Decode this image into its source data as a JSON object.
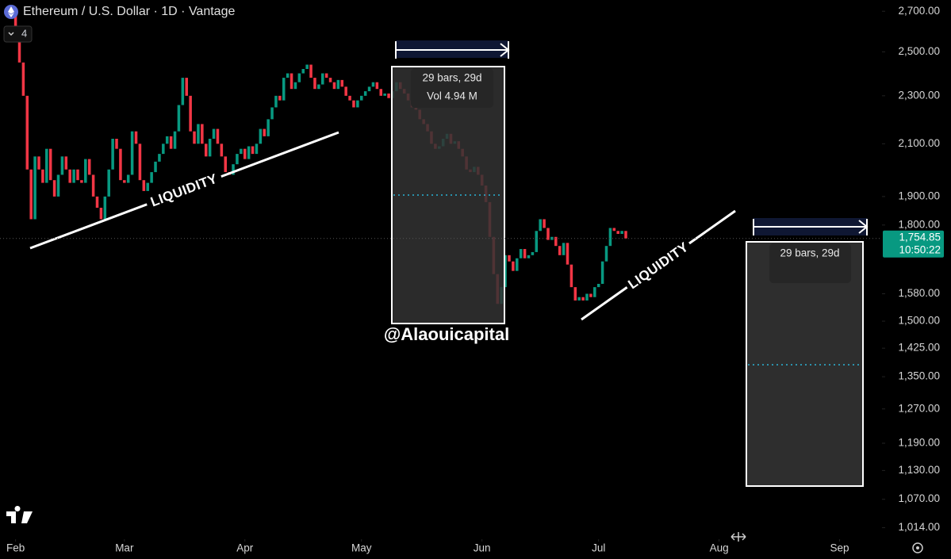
{
  "chart_data": {
    "type": "candlestick",
    "title": "Ethereum / U.S. Dollar · 1D · Vantage",
    "indicator_count": "4",
    "log_scale": true,
    "up_color": "#089981",
    "down_color": "#f23645",
    "candles": [
      [
        2680,
        2600
      ],
      [
        2600,
        2450
      ],
      [
        2450,
        2300
      ],
      [
        2300,
        2000
      ],
      [
        2000,
        1820
      ],
      [
        1820,
        2050
      ],
      [
        2050,
        2000
      ],
      [
        2000,
        1950
      ],
      [
        1950,
        2080
      ],
      [
        2080,
        1960
      ],
      [
        1960,
        1900
      ],
      [
        1900,
        1980
      ],
      [
        1980,
        2050
      ],
      [
        2050,
        2000
      ],
      [
        2000,
        1950
      ],
      [
        1950,
        2000
      ],
      [
        2000,
        1960
      ],
      [
        1960,
        1950
      ],
      [
        1950,
        2040
      ],
      [
        2040,
        1980
      ],
      [
        1980,
        1900
      ],
      [
        1900,
        1860
      ],
      [
        1860,
        1820
      ],
      [
        1820,
        1900
      ],
      [
        1900,
        2000
      ],
      [
        2000,
        2120
      ],
      [
        2120,
        2080
      ],
      [
        2080,
        1960
      ],
      [
        1960,
        1950
      ],
      [
        1950,
        1980
      ],
      [
        1980,
        2150
      ],
      [
        2150,
        2100
      ],
      [
        2100,
        1960
      ],
      [
        1960,
        1920
      ],
      [
        1920,
        1950
      ],
      [
        1950,
        1990
      ],
      [
        1990,
        2030
      ],
      [
        2030,
        2060
      ],
      [
        2060,
        2100
      ],
      [
        2100,
        2130
      ],
      [
        2130,
        2080
      ],
      [
        2080,
        2150
      ],
      [
        2150,
        2260
      ],
      [
        2260,
        2380
      ],
      [
        2380,
        2300
      ],
      [
        2300,
        2150
      ],
      [
        2150,
        2100
      ],
      [
        2100,
        2180
      ],
      [
        2180,
        2100
      ],
      [
        2100,
        2050
      ],
      [
        2050,
        2120
      ],
      [
        2120,
        2160
      ],
      [
        2160,
        2100
      ],
      [
        2100,
        2050
      ],
      [
        2050,
        1990
      ],
      [
        1990,
        1980
      ],
      [
        1980,
        2020
      ],
      [
        2020,
        2060
      ],
      [
        2060,
        2080
      ],
      [
        2080,
        2040
      ],
      [
        2040,
        2090
      ],
      [
        2090,
        2060
      ],
      [
        2060,
        2100
      ],
      [
        2100,
        2160
      ],
      [
        2160,
        2130
      ],
      [
        2130,
        2200
      ],
      [
        2200,
        2250
      ],
      [
        2250,
        2300
      ],
      [
        2300,
        2280
      ],
      [
        2280,
        2380
      ],
      [
        2380,
        2400
      ],
      [
        2400,
        2330
      ],
      [
        2330,
        2360
      ],
      [
        2360,
        2400
      ],
      [
        2400,
        2420
      ],
      [
        2420,
        2440
      ],
      [
        2440,
        2380
      ],
      [
        2380,
        2330
      ],
      [
        2330,
        2350
      ],
      [
        2350,
        2400
      ],
      [
        2400,
        2380
      ],
      [
        2380,
        2360
      ],
      [
        2360,
        2330
      ],
      [
        2330,
        2370
      ],
      [
        2370,
        2340
      ],
      [
        2340,
        2300
      ],
      [
        2300,
        2280
      ],
      [
        2280,
        2250
      ],
      [
        2250,
        2280
      ],
      [
        2280,
        2300
      ],
      [
        2300,
        2320
      ],
      [
        2320,
        2340
      ],
      [
        2340,
        2360
      ],
      [
        2360,
        2330
      ],
      [
        2330,
        2300
      ],
      [
        2300,
        2310
      ],
      [
        2310,
        2290
      ],
      [
        2290,
        2320
      ],
      [
        2320,
        2360
      ],
      [
        2360,
        2330
      ],
      [
        2330,
        2310
      ],
      [
        2310,
        2280
      ],
      [
        2280,
        2250
      ],
      [
        2250,
        2240
      ],
      [
        2240,
        2200
      ],
      [
        2200,
        2180
      ],
      [
        2180,
        2150
      ],
      [
        2150,
        2100
      ],
      [
        2100,
        2080
      ],
      [
        2080,
        2090
      ],
      [
        2090,
        2120
      ],
      [
        2120,
        2140
      ],
      [
        2140,
        2100
      ],
      [
        2100,
        2110
      ],
      [
        2110,
        2080
      ],
      [
        2080,
        2050
      ],
      [
        2050,
        2000
      ],
      [
        2000,
        1990
      ],
      [
        1990,
        2010
      ],
      [
        2010,
        1980
      ],
      [
        1980,
        1940
      ],
      [
        1940,
        1880
      ],
      [
        1880,
        1760
      ],
      [
        1760,
        1640
      ],
      [
        1640,
        1550
      ],
      [
        1550,
        1600
      ],
      [
        1600,
        1700
      ],
      [
        1700,
        1680
      ],
      [
        1680,
        1650
      ],
      [
        1650,
        1690
      ],
      [
        1690,
        1720
      ],
      [
        1720,
        1690
      ],
      [
        1690,
        1700
      ],
      [
        1700,
        1710
      ],
      [
        1710,
        1780
      ],
      [
        1780,
        1820
      ],
      [
        1820,
        1790
      ],
      [
        1790,
        1750
      ],
      [
        1750,
        1760
      ],
      [
        1760,
        1730
      ],
      [
        1730,
        1700
      ],
      [
        1700,
        1740
      ],
      [
        1740,
        1670
      ],
      [
        1670,
        1600
      ],
      [
        1600,
        1560
      ],
      [
        1560,
        1570
      ],
      [
        1570,
        1560
      ],
      [
        1560,
        1580
      ],
      [
        1580,
        1570
      ],
      [
        1570,
        1600
      ],
      [
        1600,
        1610
      ],
      [
        1610,
        1680
      ],
      [
        1680,
        1730
      ],
      [
        1730,
        1790
      ],
      [
        1790,
        1780
      ],
      [
        1780,
        1770
      ],
      [
        1770,
        1780
      ],
      [
        1780,
        1754.85
      ]
    ],
    "last_price": {
      "value": 1754.85,
      "label": "1,754.85"
    },
    "countdown": "10:50:22",
    "xlim": [
      -4,
      222.5
    ],
    "xticks": [
      {
        "value": 0,
        "label": "Feb"
      },
      {
        "value": 28,
        "label": "Mar"
      },
      {
        "value": 59,
        "label": "Apr"
      },
      {
        "value": 89,
        "label": "May"
      },
      {
        "value": 120,
        "label": "Jun"
      },
      {
        "value": 150,
        "label": "Jul"
      },
      {
        "value": 181,
        "label": "Aug"
      },
      {
        "value": 212,
        "label": "Sep"
      }
    ],
    "ylim": [
      995,
      2750
    ],
    "yticks": [
      {
        "value": 2700,
        "label": "2,700.00"
      },
      {
        "value": 2500,
        "label": "2,500.00"
      },
      {
        "value": 2300,
        "label": "2,300.00"
      },
      {
        "value": 2100,
        "label": "2,100.00"
      },
      {
        "value": 1900,
        "label": "1,900.00"
      },
      {
        "value": 1800,
        "label": "1,800.00"
      },
      {
        "value": 1580,
        "label": "1,580.00"
      },
      {
        "value": 1500,
        "label": "1,500.00"
      },
      {
        "value": 1425,
        "label": "1,425.00"
      },
      {
        "value": 1350,
        "label": "1,350.00"
      },
      {
        "value": 1270,
        "label": "1,270.00"
      },
      {
        "value": 1190,
        "label": "1,190.00"
      },
      {
        "value": 1130,
        "label": "1,130.00"
      },
      {
        "value": 1070,
        "label": "1,070.00"
      },
      {
        "value": 1014,
        "label": "1,014.00"
      }
    ],
    "annotations": {
      "liquidity_left": "LIQUIDITY",
      "liquidity_right": "LIQUIDITY",
      "measure_left": {
        "bars": "29 bars, 29d",
        "volume": "Vol 4.94 M"
      },
      "measure_right": {
        "bars": "29 bars, 29d"
      },
      "watermark": "@Alaouicapital"
    }
  }
}
